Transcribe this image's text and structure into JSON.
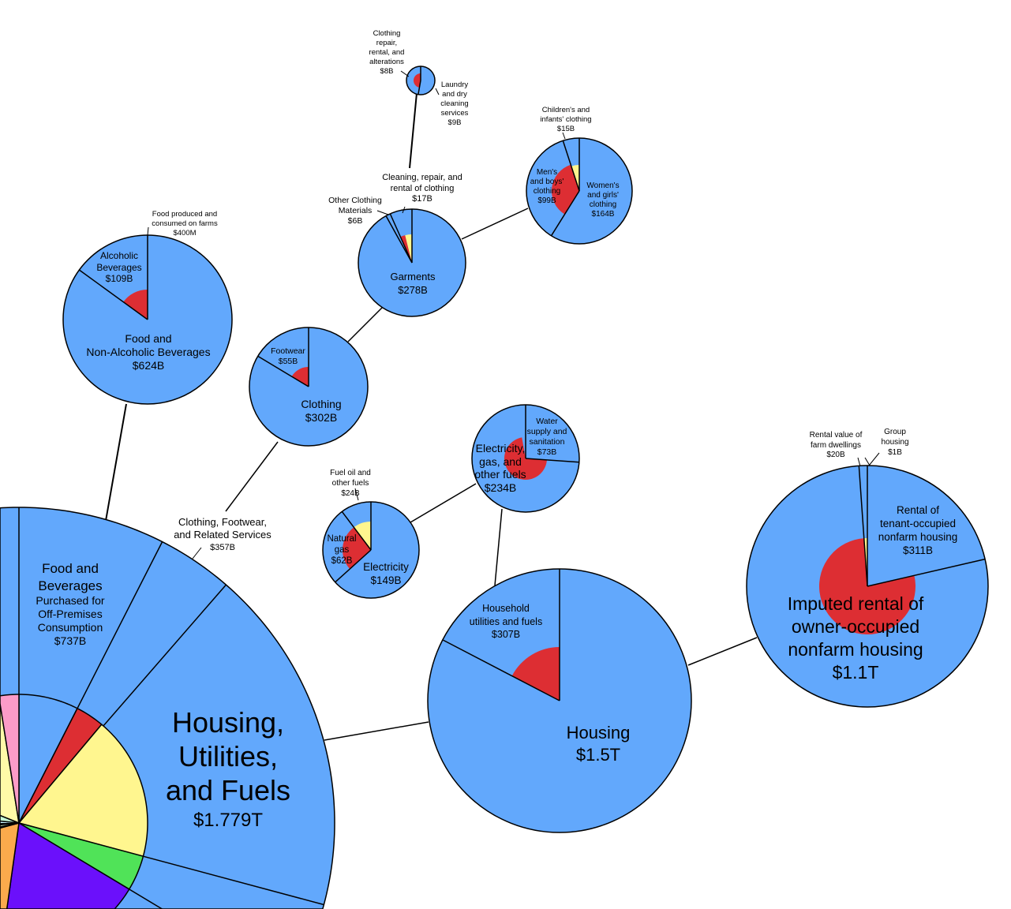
{
  "colors": {
    "wedge_blue": "#62a8fc",
    "inner_red": "#dd2e33",
    "inner_yellow": "#fff68f",
    "green": "#50e358",
    "purple": "#6b10fb",
    "orange": "#fbaa4c",
    "pink": "#fc9cc8",
    "mint": "#c4f7d6",
    "light_cyan": "#c6f3ff",
    "light_yellow": "#fffaa8",
    "olive_grey": "#a8b896",
    "brown": "#a0706c",
    "cyan": "#2fb8d8",
    "outline": "#000000"
  },
  "labels": {
    "housing_utilities_fuels": [
      "Housing,",
      "Utilities,",
      "and Fuels",
      "$1.779T"
    ],
    "food_beverages_off_premises": [
      "Food and",
      "Beverages",
      "Purchased for",
      "Off-Premises",
      "Consumption",
      "$737B"
    ],
    "clothing_footwear_services": [
      "Clothing, Footwear,",
      "and Related Services",
      "$357B"
    ],
    "food_non_alcoholic": [
      "Food and",
      "Non-Alcoholic Beverages",
      "$624B"
    ],
    "alcoholic_beverages": [
      "Alcoholic",
      "Beverages",
      "$109B"
    ],
    "food_on_farms": [
      "Food produced and",
      "consumed on farms",
      "$400M"
    ],
    "clothing": [
      "Clothing",
      "$302B"
    ],
    "footwear": [
      "Footwear",
      "$55B"
    ],
    "garments": [
      "Garments",
      "$278B"
    ],
    "other_clothing_materials": [
      "Other Clothing",
      "Materials",
      "$6B"
    ],
    "cleaning_repair_rental": [
      "Cleaning, repair, and",
      "rental of clothing",
      "$17B"
    ],
    "clothing_repair": [
      "Clothing",
      "repair,",
      "rental, and",
      "alterations",
      "$8B"
    ],
    "laundry": [
      "Laundry",
      "and dry",
      "cleaning",
      "services",
      "$9B"
    ],
    "childrens_clothing": [
      "Children's and",
      "infants' clothing",
      "$15B"
    ],
    "mens_clothing": [
      "Men's",
      "and boys'",
      "clothing",
      "$99B"
    ],
    "womens_clothing": [
      "Women's",
      "and girls'",
      "clothing",
      "$164B"
    ],
    "electricity_gas_fuels": [
      "Electricity,",
      "gas, and",
      "other fuels",
      "$234B"
    ],
    "water_supply": [
      "Water",
      "supply and",
      "sanitation",
      "$73B"
    ],
    "fuel_oil": [
      "Fuel oil and",
      "other fuels",
      "$24B"
    ],
    "natural_gas": [
      "Natural",
      "gas",
      "$62B"
    ],
    "electricity": [
      "Electricity",
      "$149B"
    ],
    "housing": [
      "Housing",
      "$1.5T"
    ],
    "household_utilities": [
      "Household",
      "utilities and fuels",
      "$307B"
    ],
    "imputed_rental": [
      "Imputed rental of",
      "owner-occupied",
      "nonfarm housing",
      "$1.1T"
    ],
    "tenant_rental": [
      "Rental of",
      "tenant-occupied",
      "nonfarm housing",
      "$311B"
    ],
    "farm_dwellings": [
      "Rental value of",
      "farm dwellings",
      "$20B"
    ],
    "group_housing": [
      "Group",
      "housing",
      "$1B"
    ]
  }
}
